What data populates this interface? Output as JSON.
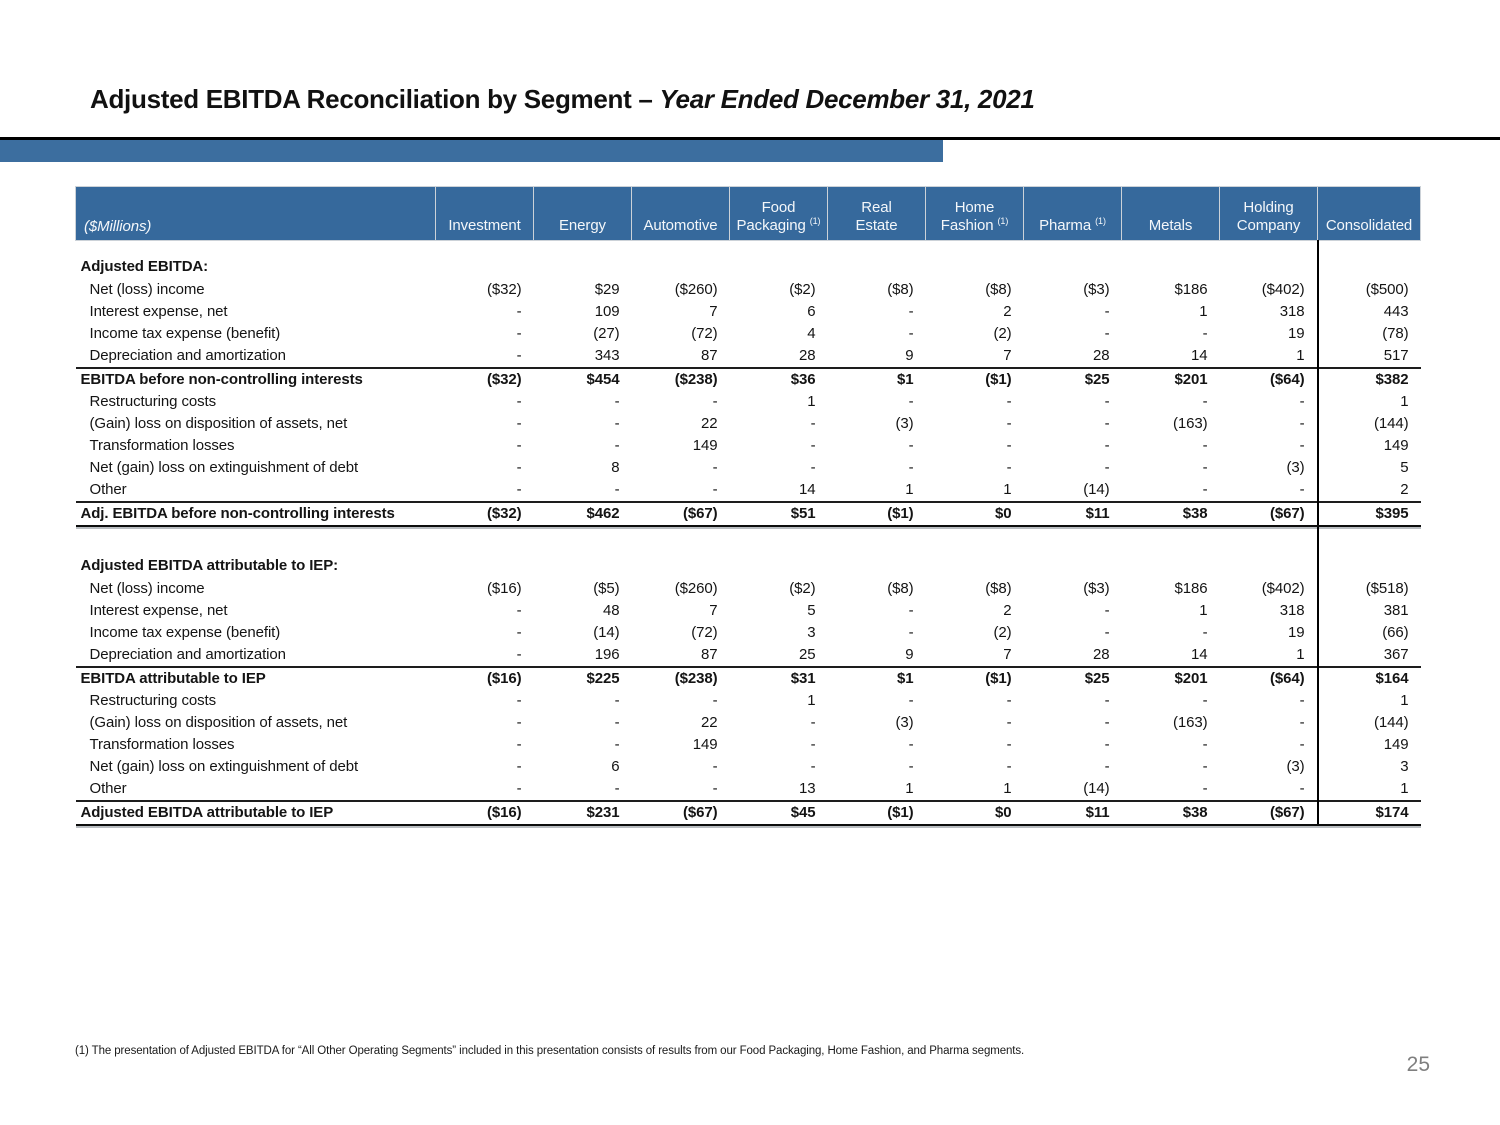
{
  "title": {
    "main": "Adjusted EBITDA Reconciliation by Segment – ",
    "italic": "Year Ended December 31, 2021"
  },
  "colors": {
    "accent_bar": "#3C6E9F",
    "header_bg": "#36699C",
    "header_text": "#F4F7FA",
    "page_number": "#7F7F7F"
  },
  "table": {
    "unit_label": "($Millions)",
    "columns": [
      {
        "lines": [
          "Investment"
        ],
        "sup": ""
      },
      {
        "lines": [
          "Energy"
        ],
        "sup": ""
      },
      {
        "lines": [
          "Automotive"
        ],
        "sup": ""
      },
      {
        "lines": [
          "Food",
          "Packaging"
        ],
        "sup": "(1)"
      },
      {
        "lines": [
          "Real",
          "Estate"
        ],
        "sup": ""
      },
      {
        "lines": [
          "Home",
          "Fashion"
        ],
        "sup": "(1)"
      },
      {
        "lines": [
          "Pharma"
        ],
        "sup": "(1)"
      },
      {
        "lines": [
          "Metals"
        ],
        "sup": ""
      },
      {
        "lines": [
          "Holding",
          "Company"
        ],
        "sup": ""
      },
      {
        "lines": [
          "Consolidated"
        ],
        "sup": ""
      }
    ],
    "sections": [
      {
        "heading": "Adjusted EBITDA:",
        "rows": [
          {
            "label": "Net (loss) income",
            "style": "data",
            "values": [
              "($32)",
              "$29",
              "($260)",
              "($2)",
              "($8)",
              "($8)",
              "($3)",
              "$186",
              "($402)",
              "($500)"
            ]
          },
          {
            "label": "Interest expense, net",
            "style": "data",
            "values": [
              "-",
              "109",
              "7",
              "6",
              "-",
              "2",
              "-",
              "1",
              "318",
              "443"
            ]
          },
          {
            "label": "Income tax expense (benefit)",
            "style": "data",
            "values": [
              "-",
              "(27)",
              "(72)",
              "4",
              "-",
              "(2)",
              "-",
              "-",
              "19",
              "(78)"
            ]
          },
          {
            "label": "Depreciation and amortization",
            "style": "data",
            "values": [
              "-",
              "343",
              "87",
              "28",
              "9",
              "7",
              "28",
              "14",
              "1",
              "517"
            ]
          },
          {
            "label": "EBITDA before non-controlling interests",
            "style": "subtotal",
            "values": [
              "($32)",
              "$454",
              "($238)",
              "$36",
              "$1",
              "($1)",
              "$25",
              "$201",
              "($64)",
              "$382"
            ]
          },
          {
            "label": "Restructuring costs",
            "style": "data",
            "values": [
              "-",
              "-",
              "-",
              "1",
              "-",
              "-",
              "-",
              "-",
              "-",
              "1"
            ]
          },
          {
            "label": "(Gain) loss on disposition of assets, net",
            "style": "data",
            "values": [
              "-",
              "-",
              "22",
              "-",
              "(3)",
              "-",
              "-",
              "(163)",
              "-",
              "(144)"
            ]
          },
          {
            "label": "Transformation losses",
            "style": "data",
            "values": [
              "-",
              "-",
              "149",
              "-",
              "-",
              "-",
              "-",
              "-",
              "-",
              "149"
            ]
          },
          {
            "label": "Net (gain) loss on extinguishment of debt",
            "style": "data",
            "values": [
              "-",
              "8",
              "-",
              "-",
              "-",
              "-",
              "-",
              "-",
              "(3)",
              "5"
            ]
          },
          {
            "label": "Other",
            "style": "data",
            "values": [
              "-",
              "-",
              "-",
              "14",
              "1",
              "1",
              "(14)",
              "-",
              "-",
              "2"
            ]
          },
          {
            "label": "Adj. EBITDA before non-controlling interests",
            "style": "total",
            "values": [
              "($32)",
              "$462",
              "($67)",
              "$51",
              "($1)",
              "$0",
              "$11",
              "$38",
              "($67)",
              "$395"
            ]
          }
        ]
      },
      {
        "heading": "Adjusted EBITDA attributable to IEP:",
        "rows": [
          {
            "label": "Net (loss) income",
            "style": "data",
            "values": [
              "($16)",
              "($5)",
              "($260)",
              "($2)",
              "($8)",
              "($8)",
              "($3)",
              "$186",
              "($402)",
              "($518)"
            ]
          },
          {
            "label": "Interest expense, net",
            "style": "data",
            "values": [
              "-",
              "48",
              "7",
              "5",
              "-",
              "2",
              "-",
              "1",
              "318",
              "381"
            ]
          },
          {
            "label": "Income tax expense (benefit)",
            "style": "data",
            "values": [
              "-",
              "(14)",
              "(72)",
              "3",
              "-",
              "(2)",
              "-",
              "-",
              "19",
              "(66)"
            ]
          },
          {
            "label": "Depreciation and amortization",
            "style": "data",
            "values": [
              "-",
              "196",
              "87",
              "25",
              "9",
              "7",
              "28",
              "14",
              "1",
              "367"
            ]
          },
          {
            "label": "EBITDA attributable to IEP",
            "style": "subtotal",
            "values": [
              "($16)",
              "$225",
              "($238)",
              "$31",
              "$1",
              "($1)",
              "$25",
              "$201",
              "($64)",
              "$164"
            ]
          },
          {
            "label": "Restructuring costs",
            "style": "data",
            "values": [
              "-",
              "-",
              "-",
              "1",
              "-",
              "-",
              "-",
              "-",
              "-",
              "1"
            ]
          },
          {
            "label": "(Gain) loss on disposition of assets, net",
            "style": "data",
            "values": [
              "-",
              "-",
              "22",
              "-",
              "(3)",
              "-",
              "-",
              "(163)",
              "-",
              "(144)"
            ]
          },
          {
            "label": "Transformation losses",
            "style": "data",
            "values": [
              "-",
              "-",
              "149",
              "-",
              "-",
              "-",
              "-",
              "-",
              "-",
              "149"
            ]
          },
          {
            "label": "Net (gain) loss on extinguishment of debt",
            "style": "data",
            "values": [
              "-",
              "6",
              "-",
              "-",
              "-",
              "-",
              "-",
              "-",
              "(3)",
              "3"
            ]
          },
          {
            "label": "Other",
            "style": "data",
            "values": [
              "-",
              "-",
              "-",
              "13",
              "1",
              "1",
              "(14)",
              "-",
              "-",
              "1"
            ]
          },
          {
            "label": "Adjusted EBITDA attributable to IEP",
            "style": "total",
            "values": [
              "($16)",
              "$231",
              "($67)",
              "$45",
              "($1)",
              "$0",
              "$11",
              "$38",
              "($67)",
              "$174"
            ]
          }
        ]
      }
    ]
  },
  "footnote": "(1) The presentation of Adjusted EBITDA for “All Other Operating Segments” included in this presentation consists of results from our Food Packaging, Home Fashion, and Pharma segments.",
  "page_number": "25"
}
